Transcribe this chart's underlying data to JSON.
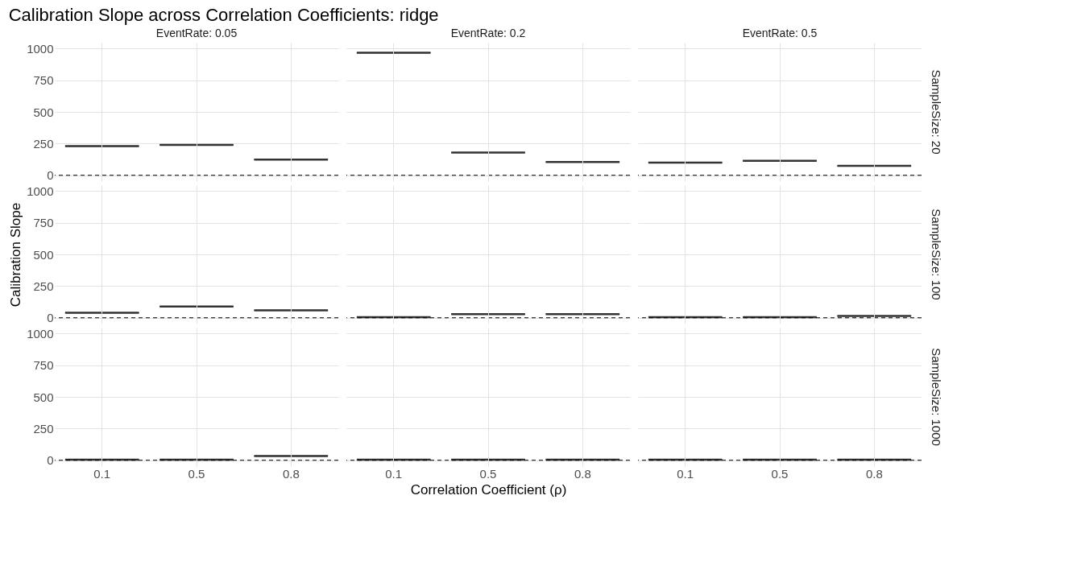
{
  "chart_data": [
    {
      "type": "box",
      "title": "Calibration Slope across Correlation Coefficients: ridge",
      "x2label": "EventRate: 0.05",
      "categories": [
        "0.1",
        "0.5",
        "0.8"
      ],
      "boxes": [
        {
          "low": 230,
          "q1": 230,
          "median": 230,
          "q3": 230,
          "high": 230
        },
        {
          "low": 240,
          "q1": 240,
          "median": 240,
          "q3": 240,
          "high": 240
        },
        {
          "low": 125,
          "q1": 125,
          "median": 125,
          "q3": 125,
          "high": 125
        }
      ],
      "ylim": [
        -45,
        1045
      ],
      "yticks": [
        0,
        250,
        500,
        750,
        1000
      ],
      "ref_lines": [
        {
          "axis": "y",
          "value": 1,
          "line_style": "dashed"
        }
      ],
      "grid": true,
      "tick_labels": "y"
    },
    {
      "type": "box",
      "x2label": "EventRate: 0.2",
      "categories": [
        "0.1",
        "0.5",
        "0.8"
      ],
      "boxes": [
        {
          "low": 965,
          "q1": 965,
          "median": 965,
          "q3": 965,
          "high": 965
        },
        {
          "low": 180,
          "q1": 180,
          "median": 180,
          "q3": 180,
          "high": 180
        },
        {
          "low": 105,
          "q1": 105,
          "median": 105,
          "q3": 105,
          "high": 105
        }
      ],
      "ylim": [
        -45,
        1045
      ],
      "yticks": [
        0,
        250,
        500,
        750,
        1000
      ],
      "ref_lines": [
        {
          "axis": "y",
          "value": 1,
          "line_style": "dashed"
        }
      ],
      "grid": true,
      "tick_labels": false
    },
    {
      "type": "box",
      "x2label": "EventRate: 0.5",
      "y2label": "SampleSize: 20",
      "categories": [
        "0.1",
        "0.5",
        "0.8"
      ],
      "boxes": [
        {
          "low": 100,
          "q1": 100,
          "median": 100,
          "q3": 100,
          "high": 100
        },
        {
          "low": 115,
          "q1": 115,
          "median": 115,
          "q3": 115,
          "high": 115
        },
        {
          "low": 75,
          "q1": 75,
          "median": 75,
          "q3": 75,
          "high": 75
        }
      ],
      "ylim": [
        -45,
        1045
      ],
      "yticks": [
        0,
        250,
        500,
        750,
        1000
      ],
      "ref_lines": [
        {
          "axis": "y",
          "value": 1,
          "line_style": "dashed"
        }
      ],
      "grid": true,
      "tick_labels": false
    },
    {
      "type": "box",
      "ylabel": "Calibration Slope",
      "categories": [
        "0.1",
        "0.5",
        "0.8"
      ],
      "boxes": [
        {
          "low": 40,
          "q1": 40,
          "median": 40,
          "q3": 40,
          "high": 40
        },
        {
          "low": 90,
          "q1": 90,
          "median": 90,
          "q3": 90,
          "high": 90
        },
        {
          "low": 60,
          "q1": 60,
          "median": 60,
          "q3": 60,
          "high": 60
        }
      ],
      "ylim": [
        -45,
        1045
      ],
      "yticks": [
        0,
        250,
        500,
        750,
        1000
      ],
      "ref_lines": [
        {
          "axis": "y",
          "value": 1,
          "line_style": "dashed"
        }
      ],
      "grid": true,
      "tick_labels": "y"
    },
    {
      "type": "box",
      "categories": [
        "0.1",
        "0.5",
        "0.8"
      ],
      "boxes": [
        {
          "low": 5,
          "q1": 5,
          "median": 5,
          "q3": 5,
          "high": 5
        },
        {
          "low": 30,
          "q1": 30,
          "median": 30,
          "q3": 30,
          "high": 30
        },
        {
          "low": 30,
          "q1": 30,
          "median": 30,
          "q3": 30,
          "high": 30
        }
      ],
      "ylim": [
        -45,
        1045
      ],
      "yticks": [
        0,
        250,
        500,
        750,
        1000
      ],
      "ref_lines": [
        {
          "axis": "y",
          "value": 1,
          "line_style": "dashed"
        }
      ],
      "grid": true,
      "tick_labels": false
    },
    {
      "type": "box",
      "y2label": "SampleSize: 100",
      "categories": [
        "0.1",
        "0.5",
        "0.8"
      ],
      "boxes": [
        {
          "low": 5,
          "q1": 5,
          "median": 5,
          "q3": 5,
          "high": 5
        },
        {
          "low": 5,
          "q1": 5,
          "median": 5,
          "q3": 5,
          "high": 5
        },
        {
          "low": 15,
          "q1": 15,
          "median": 15,
          "q3": 15,
          "high": 15
        }
      ],
      "ylim": [
        -45,
        1045
      ],
      "yticks": [
        0,
        250,
        500,
        750,
        1000
      ],
      "ref_lines": [
        {
          "axis": "y",
          "value": 1,
          "line_style": "dashed"
        }
      ],
      "grid": true,
      "tick_labels": false
    },
    {
      "type": "box",
      "categories": [
        "0.1",
        "0.5",
        "0.8"
      ],
      "boxes": [
        {
          "low": 5,
          "q1": 5,
          "median": 5,
          "q3": 5,
          "high": 5
        },
        {
          "low": 5,
          "q1": 5,
          "median": 5,
          "q3": 5,
          "high": 5
        },
        {
          "low": 35,
          "q1": 35,
          "median": 35,
          "q3": 35,
          "high": 35
        }
      ],
      "ylim": [
        -45,
        1045
      ],
      "yticks": [
        0,
        250,
        500,
        750,
        1000
      ],
      "ref_lines": [
        {
          "axis": "y",
          "value": 1,
          "line_style": "dashed"
        }
      ],
      "grid": true
    },
    {
      "type": "box",
      "xlabel": "Correlation Coefficient (ρ)",
      "categories": [
        "0.1",
        "0.5",
        "0.8"
      ],
      "boxes": [
        {
          "low": 5,
          "q1": 5,
          "median": 5,
          "q3": 5,
          "high": 5
        },
        {
          "low": 5,
          "q1": 5,
          "median": 5,
          "q3": 5,
          "high": 5
        },
        {
          "low": 5,
          "q1": 5,
          "median": 5,
          "q3": 5,
          "high": 5
        }
      ],
      "ylim": [
        -45,
        1045
      ],
      "yticks": [
        0,
        250,
        500,
        750,
        1000
      ],
      "ref_lines": [
        {
          "axis": "y",
          "value": 1,
          "line_style": "dashed"
        }
      ],
      "grid": true,
      "tick_labels": "x"
    },
    {
      "type": "box",
      "y2label": "SampleSize: 1000",
      "categories": [
        "0.1",
        "0.5",
        "0.8"
      ],
      "boxes": [
        {
          "low": 5,
          "q1": 5,
          "median": 5,
          "q3": 5,
          "high": 5
        },
        {
          "low": 5,
          "q1": 5,
          "median": 5,
          "q3": 5,
          "high": 5
        },
        {
          "low": 5,
          "q1": 5,
          "median": 5,
          "q3": 5,
          "high": 5
        }
      ],
      "ylim": [
        -45,
        1045
      ],
      "yticks": [
        0,
        250,
        500,
        750,
        1000
      ],
      "ref_lines": [
        {
          "axis": "y",
          "value": 1,
          "line_style": "dashed"
        }
      ],
      "grid": true,
      "tick_labels": "x"
    }
  ]
}
